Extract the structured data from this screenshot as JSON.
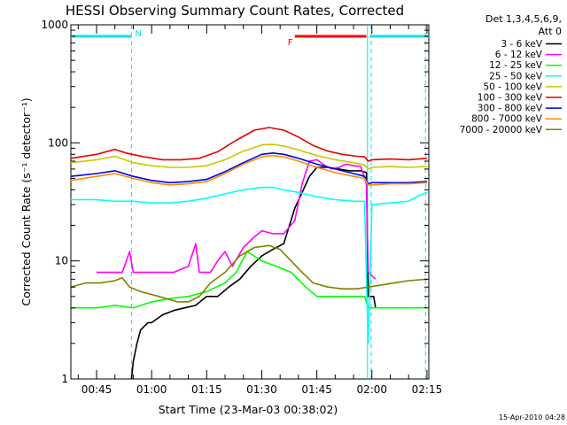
{
  "chart_data": {
    "type": "line",
    "title": "HESSI Observing Summary Count Rates, Corrected",
    "xlabel": "Start Time (23-Mar-03 00:38:02)",
    "ylabel": "Corrected Count Rate (s⁻¹ detector⁻¹)",
    "yscale": "log",
    "ylim": [
      1,
      1000
    ],
    "xlim_minutes": [
      38.0,
      135.5
    ],
    "x_ticks": [
      {
        "label": "00:45",
        "minute": 45
      },
      {
        "label": "01:00",
        "minute": 60
      },
      {
        "label": "01:15",
        "minute": 75
      },
      {
        "label": "01:30",
        "minute": 90
      },
      {
        "label": "01:45",
        "minute": 105
      },
      {
        "label": "02:00",
        "minute": 120
      },
      {
        "label": "02:15",
        "minute": 135
      }
    ],
    "y_ticks": [
      {
        "label": "1",
        "value": 1
      },
      {
        "label": "10",
        "value": 10
      },
      {
        "label": "100",
        "value": 100
      },
      {
        "label": "1000",
        "value": 1000
      }
    ],
    "legend": {
      "position": "top-right",
      "title_lines": [
        "Det 1,3,4,5,6,9,",
        "Att 0"
      ]
    },
    "series": [
      {
        "name": "3 - 6 keV",
        "color": "#000000",
        "points": [
          [
            54.5,
            1
          ],
          [
            55,
            1.4
          ],
          [
            56,
            2
          ],
          [
            57,
            2.6
          ],
          [
            58,
            2.8
          ],
          [
            59,
            3
          ],
          [
            60,
            3
          ],
          [
            63,
            3.5
          ],
          [
            66,
            3.8
          ],
          [
            69,
            4
          ],
          [
            72,
            4.2
          ],
          [
            75,
            5
          ],
          [
            78,
            5
          ],
          [
            81,
            6
          ],
          [
            84,
            7
          ],
          [
            87,
            9
          ],
          [
            90,
            11
          ],
          [
            93,
            12.5
          ],
          [
            96,
            14
          ],
          [
            99,
            28
          ],
          [
            101,
            38
          ],
          [
            103,
            52
          ],
          [
            105,
            62
          ],
          [
            108,
            62
          ],
          [
            111,
            60
          ],
          [
            114,
            58
          ],
          [
            117,
            58
          ],
          [
            118.5,
            56
          ],
          [
            119,
            5
          ],
          [
            120.5,
            5
          ],
          [
            121,
            4
          ]
        ]
      },
      {
        "name": "6 - 12 keV",
        "color": "#ff00ff",
        "points": [
          [
            45,
            8
          ],
          [
            52,
            8
          ],
          [
            54,
            12
          ],
          [
            55,
            8
          ],
          [
            60,
            8
          ],
          [
            66,
            8
          ],
          [
            70,
            9
          ],
          [
            72,
            14
          ],
          [
            73,
            8
          ],
          [
            76,
            8
          ],
          [
            78,
            10
          ],
          [
            80,
            12
          ],
          [
            82,
            9
          ],
          [
            85,
            13
          ],
          [
            88,
            16
          ],
          [
            90,
            18
          ],
          [
            93,
            17
          ],
          [
            96,
            17
          ],
          [
            99,
            22
          ],
          [
            101,
            45
          ],
          [
            103,
            70
          ],
          [
            105,
            72
          ],
          [
            107,
            65
          ],
          [
            109,
            60
          ],
          [
            111,
            62
          ],
          [
            113,
            66
          ],
          [
            115,
            64
          ],
          [
            117,
            63
          ],
          [
            118.5,
            45
          ],
          [
            119,
            8
          ],
          [
            121,
            7
          ]
        ]
      },
      {
        "name": "12 - 25 keV",
        "color": "#00ff00",
        "points": [
          [
            38,
            4
          ],
          [
            45,
            4
          ],
          [
            50,
            4.2
          ],
          [
            55,
            4
          ],
          [
            60,
            4.5
          ],
          [
            65,
            4.8
          ],
          [
            70,
            5
          ],
          [
            75,
            5.5
          ],
          [
            80,
            6.5
          ],
          [
            83,
            8
          ],
          [
            86,
            12
          ],
          [
            90,
            10
          ],
          [
            94,
            9
          ],
          [
            98,
            8
          ],
          [
            102,
            6
          ],
          [
            105,
            5
          ],
          [
            110,
            5
          ],
          [
            115,
            5
          ],
          [
            118,
            5
          ],
          [
            119,
            4
          ],
          [
            125,
            4
          ],
          [
            130,
            4
          ],
          [
            135,
            4
          ]
        ]
      },
      {
        "name": "25 - 50 keV",
        "color": "#00ffff",
        "points": [
          [
            38,
            33
          ],
          [
            45,
            33
          ],
          [
            50,
            32
          ],
          [
            55,
            32
          ],
          [
            60,
            31
          ],
          [
            65,
            31
          ],
          [
            70,
            32
          ],
          [
            75,
            34
          ],
          [
            80,
            37
          ],
          [
            85,
            40
          ],
          [
            90,
            42
          ],
          [
            93,
            42
          ],
          [
            96,
            40
          ],
          [
            100,
            38
          ],
          [
            105,
            35
          ],
          [
            110,
            33
          ],
          [
            115,
            32
          ],
          [
            118,
            32
          ],
          [
            119,
            2
          ],
          [
            120,
            30
          ],
          [
            125,
            31
          ],
          [
            130,
            32
          ],
          [
            133,
            36
          ],
          [
            135,
            38
          ]
        ]
      },
      {
        "name": "50 - 100 keV",
        "color": "#c8c800",
        "points": [
          [
            38,
            68
          ],
          [
            45,
            72
          ],
          [
            50,
            77
          ],
          [
            55,
            68
          ],
          [
            60,
            64
          ],
          [
            65,
            62
          ],
          [
            70,
            62
          ],
          [
            75,
            64
          ],
          [
            80,
            72
          ],
          [
            85,
            85
          ],
          [
            90,
            96
          ],
          [
            93,
            97
          ],
          [
            96,
            94
          ],
          [
            100,
            87
          ],
          [
            105,
            78
          ],
          [
            110,
            72
          ],
          [
            115,
            68
          ],
          [
            118,
            65
          ],
          [
            119,
            60
          ],
          [
            120,
            62
          ],
          [
            125,
            63
          ],
          [
            130,
            62
          ],
          [
            135,
            63
          ]
        ]
      },
      {
        "name": "100 - 300 keV",
        "color": "#e60000",
        "points": [
          [
            38,
            74
          ],
          [
            45,
            80
          ],
          [
            50,
            88
          ],
          [
            53,
            82
          ],
          [
            58,
            76
          ],
          [
            63,
            72
          ],
          [
            68,
            72
          ],
          [
            73,
            74
          ],
          [
            78,
            84
          ],
          [
            83,
            105
          ],
          [
            88,
            128
          ],
          [
            92,
            135
          ],
          [
            96,
            128
          ],
          [
            100,
            112
          ],
          [
            104,
            95
          ],
          [
            108,
            85
          ],
          [
            112,
            80
          ],
          [
            116,
            77
          ],
          [
            118,
            76
          ],
          [
            119,
            70
          ],
          [
            120,
            72
          ],
          [
            125,
            73
          ],
          [
            130,
            72
          ],
          [
            135,
            74
          ]
        ]
      },
      {
        "name": "300 - 800 keV",
        "color": "#0000e6",
        "points": [
          [
            38,
            52
          ],
          [
            45,
            55
          ],
          [
            50,
            58
          ],
          [
            55,
            52
          ],
          [
            60,
            48
          ],
          [
            65,
            46
          ],
          [
            70,
            47
          ],
          [
            75,
            49
          ],
          [
            80,
            57
          ],
          [
            85,
            68
          ],
          [
            90,
            80
          ],
          [
            93,
            82
          ],
          [
            96,
            80
          ],
          [
            100,
            74
          ],
          [
            105,
            66
          ],
          [
            110,
            60
          ],
          [
            115,
            55
          ],
          [
            118,
            52
          ],
          [
            119,
            45
          ],
          [
            120,
            46
          ],
          [
            125,
            46
          ],
          [
            130,
            46
          ],
          [
            135,
            47
          ]
        ]
      },
      {
        "name": "800 - 7000 keV",
        "color": "#ff8c00",
        "points": [
          [
            38,
            48
          ],
          [
            45,
            52
          ],
          [
            50,
            55
          ],
          [
            55,
            50
          ],
          [
            60,
            46
          ],
          [
            65,
            44
          ],
          [
            70,
            45
          ],
          [
            75,
            47
          ],
          [
            80,
            55
          ],
          [
            85,
            66
          ],
          [
            90,
            76
          ],
          [
            93,
            78
          ],
          [
            96,
            76
          ],
          [
            100,
            70
          ],
          [
            105,
            62
          ],
          [
            110,
            56
          ],
          [
            115,
            52
          ],
          [
            118,
            50
          ],
          [
            119,
            44
          ],
          [
            120,
            44
          ],
          [
            125,
            45
          ],
          [
            130,
            45
          ],
          [
            135,
            46
          ]
        ]
      },
      {
        "name": "7000 - 20000 keV",
        "color": "#808000",
        "points": [
          [
            38,
            6
          ],
          [
            42,
            6.5
          ],
          [
            46,
            6.5
          ],
          [
            50,
            6.8
          ],
          [
            52,
            7.2
          ],
          [
            54,
            6
          ],
          [
            57,
            5.5
          ],
          [
            62,
            5
          ],
          [
            67,
            4.5
          ],
          [
            70,
            4.5
          ],
          [
            73,
            5
          ],
          [
            76,
            6.5
          ],
          [
            80,
            8
          ],
          [
            84,
            11
          ],
          [
            88,
            13
          ],
          [
            92,
            13.5
          ],
          [
            95,
            12.5
          ],
          [
            98,
            10
          ],
          [
            101,
            8
          ],
          [
            104,
            6.5
          ],
          [
            108,
            6
          ],
          [
            112,
            5.8
          ],
          [
            116,
            5.8
          ],
          [
            119,
            6
          ],
          [
            122,
            6.2
          ],
          [
            126,
            6.5
          ],
          [
            130,
            6.8
          ],
          [
            135,
            7
          ]
        ]
      }
    ],
    "annotations": [
      {
        "label": "N",
        "color": "#00e5ee",
        "start_minute": 38,
        "end_minute": 54.5
      },
      {
        "label": "",
        "color": "#00e5ee",
        "start_minute": 119.5,
        "end_minute": 135.5
      },
      {
        "label": "F",
        "color": "#ff0000",
        "start_minute": 99,
        "end_minute": 118.5
      }
    ],
    "vertical_markers": [
      {
        "minute": 54.5,
        "color": "#00e5ee",
        "style": "dashed"
      },
      {
        "minute": 118.8,
        "color": "#00e5ee",
        "style": "solid"
      },
      {
        "minute": 119.8,
        "color": "#00e5ee",
        "style": "dashed"
      },
      {
        "minute": 134.6,
        "color": "#00e5ee",
        "style": "dashed"
      }
    ],
    "grid": false
  },
  "footer": {
    "stamp": "15-Apr-2010 04:28"
  }
}
